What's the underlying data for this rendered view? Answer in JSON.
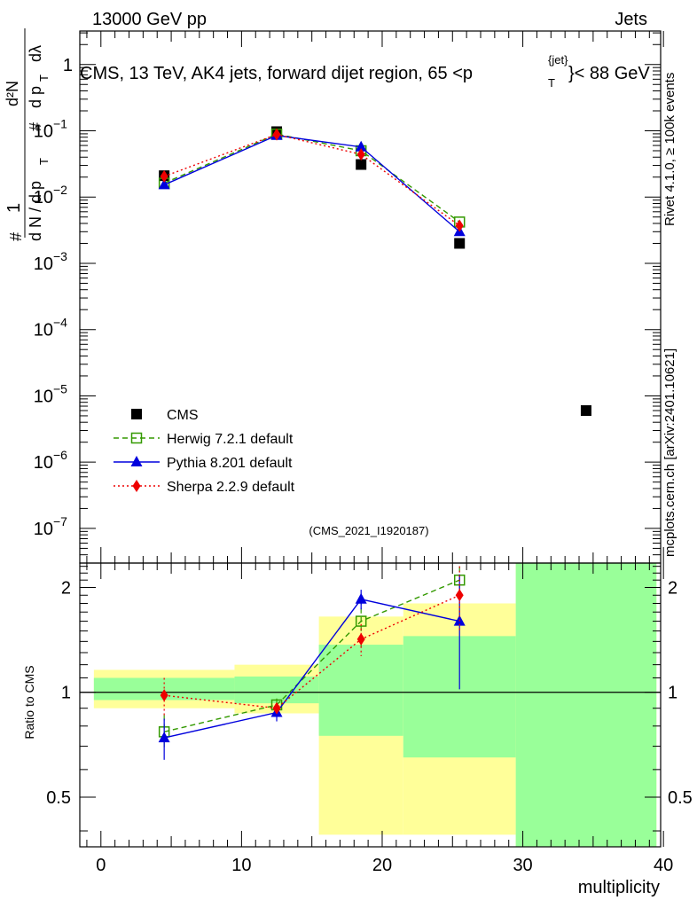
{
  "header": {
    "left": "13000 GeV pp",
    "right": "Jets",
    "title": "CMS, 13 TeV, AK4 jets, forward dijet region, 65 <p",
    "title_sup": "{jet}",
    "title_sub": "T",
    "title_end": "}< 88 GeV",
    "side_top": "Rivet 4.1.0, ≥ 100k events",
    "side_bottom": "mcplots.cern.ch [arXiv:2401.10621]",
    "watermark": "(CMS_2021_I1920187)"
  },
  "axis": {
    "xlabel": "multiplicity",
    "ratio_ylabel": "Ratio to CMS"
  },
  "colors": {
    "cms": "#000000",
    "herwig": "#339900",
    "pythia": "#0000dd",
    "sherpa": "#ee0000",
    "band_yellow": "#ffff99",
    "band_green": "#99ff99"
  },
  "chart_data": [
    {
      "type": "scatter",
      "name": "main",
      "yscale": "log",
      "xlim": [
        -1.5,
        39.8
      ],
      "ylim": [
        3e-08,
        3.2
      ],
      "xticks": [
        0,
        10,
        20,
        30,
        40
      ],
      "y_tick_labels": [
        "1",
        "10^-1",
        "10^-2",
        "10^-3",
        "10^-4",
        "10^-5",
        "10^-6",
        "10^-7"
      ],
      "ylabel": "1/dN/dpT # d²N/dpT dλ #",
      "series": [
        {
          "name": "CMS",
          "key": "cms",
          "marker": "square-filled",
          "x": [
            4.5,
            12.5,
            18.5,
            25.5,
            34.5
          ],
          "y": [
            0.021,
            0.097,
            0.031,
            0.002,
            6e-06
          ]
        },
        {
          "name": "Herwig 7.2.1 default",
          "key": "herwig",
          "marker": "square-open",
          "line": "dashed",
          "x": [
            4.5,
            12.5,
            18.5,
            25.5
          ],
          "y": [
            0.0162,
            0.089,
            0.05,
            0.0042
          ]
        },
        {
          "name": "Pythia 8.201 default",
          "key": "pythia",
          "marker": "triangle",
          "line": "solid",
          "x": [
            4.5,
            12.5,
            18.5,
            25.5
          ],
          "y": [
            0.0153,
            0.085,
            0.057,
            0.003
          ]
        },
        {
          "name": "Sherpa 2.2.9 default",
          "key": "sherpa",
          "marker": "diamond",
          "line": "dotted",
          "x": [
            4.5,
            12.5,
            18.5,
            25.5
          ],
          "y": [
            0.0205,
            0.088,
            0.044,
            0.0037
          ]
        }
      ]
    },
    {
      "type": "scatter",
      "name": "ratio",
      "yscale": "log",
      "xlim": [
        -1.5,
        39.8
      ],
      "ylim": [
        0.36,
        2.35
      ],
      "xticks": [
        0,
        10,
        20,
        30,
        40
      ],
      "yticks": [
        0.5,
        1,
        2
      ],
      "bands": [
        {
          "x0": -0.5,
          "x1": 9.5,
          "yellow": [
            0.9,
            1.16
          ],
          "green": [
            0.95,
            1.1
          ]
        },
        {
          "x0": 9.5,
          "x1": 15.5,
          "yellow": [
            0.87,
            1.2
          ],
          "green": [
            0.93,
            1.11
          ]
        },
        {
          "x0": 15.5,
          "x1": 21.5,
          "yellow": [
            0.39,
            1.65
          ],
          "green": [
            0.75,
            1.37
          ]
        },
        {
          "x0": 21.5,
          "x1": 29.5,
          "yellow": [
            0.39,
            1.8
          ],
          "green": [
            0.65,
            1.45
          ]
        },
        {
          "x0": 29.5,
          "x1": 39.5,
          "yellow": [
            0.36,
            2.35
          ],
          "green": [
            0.36,
            2.35
          ]
        }
      ],
      "series": [
        {
          "name": "Herwig",
          "key": "herwig",
          "marker": "square-open",
          "line": "dashed",
          "x": [
            4.5,
            12.5,
            18.5,
            25.5
          ],
          "y": [
            0.77,
            0.92,
            1.6,
            2.1
          ],
          "err": [
            0.09,
            0.04,
            0.25,
            0.2
          ]
        },
        {
          "name": "Pythia",
          "key": "pythia",
          "marker": "triangle",
          "line": "solid",
          "x": [
            4.5,
            12.5,
            18.5,
            25.5
          ],
          "y": [
            0.74,
            0.875,
            1.85,
            1.6
          ],
          "err": [
            0.1,
            0.05,
            0.12,
            0.58
          ]
        },
        {
          "name": "Sherpa",
          "key": "sherpa",
          "marker": "diamond",
          "line": "dotted",
          "x": [
            4.5,
            12.5,
            18.5,
            25.5
          ],
          "y": [
            0.98,
            0.9,
            1.42,
            1.9
          ],
          "err": [
            0.12,
            0.03,
            0.15,
            0.4
          ]
        }
      ]
    }
  ]
}
